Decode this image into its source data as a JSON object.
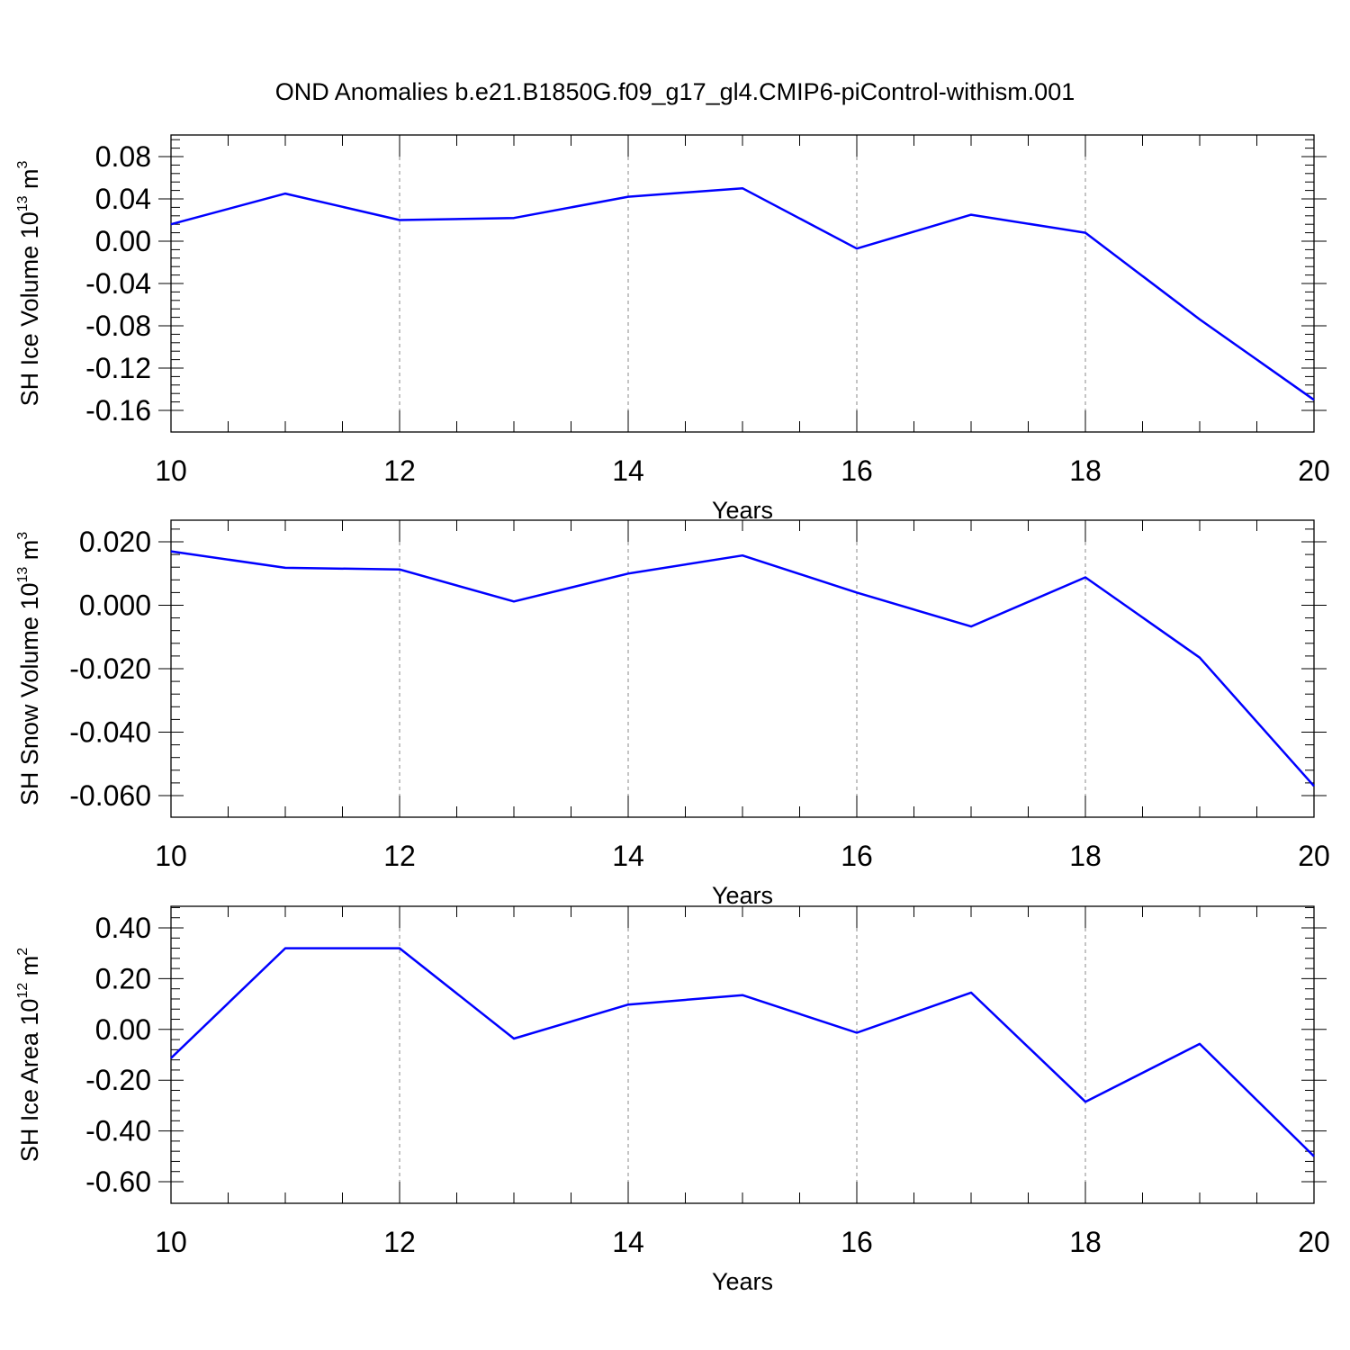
{
  "figure": {
    "title": "OND Anomalies b.e21.B1850G.f09_g17_gl4.CMIP6-piControl-withism.001"
  },
  "chart_data": [
    {
      "type": "line",
      "xlabel": "Years",
      "ylabel": {
        "prefix": "SH Ice Volume 10",
        "sup1": "13",
        "mid": " m",
        "sup2": "3"
      },
      "xlim": [
        10,
        20
      ],
      "ylim": [
        -0.16,
        0.08
      ],
      "xticks": [
        10,
        12,
        14,
        16,
        18,
        20
      ],
      "xtick_labels": [
        "10",
        "12",
        "14",
        "16",
        "18",
        "20"
      ],
      "yticks": [
        0.08,
        0.04,
        0.0,
        -0.04,
        -0.08,
        -0.12,
        -0.16
      ],
      "ytick_labels": [
        "0.08",
        "0.04",
        "0.00",
        "-0.04",
        "-0.08",
        "-0.12",
        "-0.16"
      ],
      "series": [
        {
          "color": "#0000ff",
          "x": [
            10,
            11,
            12,
            13,
            14,
            15,
            16,
            17,
            18,
            19,
            20
          ],
          "y": [
            0.016,
            0.045,
            0.02,
            0.022,
            0.042,
            0.05,
            -0.007,
            0.025,
            0.008,
            -0.074,
            -0.15
          ]
        }
      ],
      "grid": "vertical dashed at major x ticks"
    },
    {
      "type": "line",
      "xlabel": "Years",
      "ylabel": {
        "prefix": "SH Snow Volume 10",
        "sup1": "13",
        "mid": " m",
        "sup2": "3"
      },
      "xlim": [
        10,
        20
      ],
      "ylim": [
        -0.06,
        0.02
      ],
      "xticks": [
        10,
        12,
        14,
        16,
        18,
        20
      ],
      "xtick_labels": [
        "10",
        "12",
        "14",
        "16",
        "18",
        "20"
      ],
      "yticks": [
        0.02,
        0.0,
        -0.02,
        -0.04,
        -0.06
      ],
      "ytick_labels": [
        "0.020",
        "0.000",
        "-0.020",
        "-0.040",
        "-0.060"
      ],
      "series": [
        {
          "color": "#0000ff",
          "x": [
            10,
            11,
            12,
            13,
            14,
            15,
            16,
            17,
            18,
            19,
            20
          ],
          "y": [
            0.017,
            0.0118,
            0.0113,
            0.0012,
            0.01,
            0.0157,
            0.004,
            -0.0067,
            0.0088,
            -0.0165,
            -0.057
          ]
        }
      ],
      "grid": "vertical dashed at major x ticks"
    },
    {
      "type": "line",
      "xlabel": "Years",
      "ylabel": {
        "prefix": "SH Ice Area 10",
        "sup1": "12",
        "mid": " m",
        "sup2": "2"
      },
      "xlim": [
        10,
        20
      ],
      "ylim": [
        -0.6,
        0.4
      ],
      "xticks": [
        10,
        12,
        14,
        16,
        18,
        20
      ],
      "xtick_labels": [
        "10",
        "12",
        "14",
        "16",
        "18",
        "20"
      ],
      "yticks": [
        0.4,
        0.2,
        0.0,
        -0.2,
        -0.4,
        -0.6
      ],
      "ytick_labels": [
        "0.40",
        "0.20",
        "0.00",
        "-0.20",
        "-0.40",
        "-0.60"
      ],
      "series": [
        {
          "color": "#0000ff",
          "x": [
            10,
            11,
            12,
            13,
            14,
            15,
            16,
            17,
            18,
            19,
            20
          ],
          "y": [
            -0.113,
            0.32,
            0.32,
            -0.036,
            0.098,
            0.135,
            -0.013,
            0.145,
            -0.285,
            -0.057,
            -0.5
          ]
        }
      ],
      "grid": "vertical dashed at major x ticks"
    }
  ]
}
